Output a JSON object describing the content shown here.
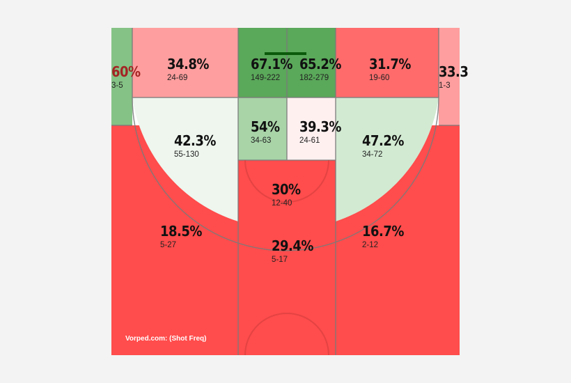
{
  "watermark": "Vorped.com: (Shot Freq)",
  "colors": {
    "red_strong": "#ff4c4c",
    "red_medium": "#ff6b6b",
    "red_light": "#ff9e9e",
    "pink_faint": "#fff0f0",
    "green_strong": "#5aa85a",
    "green_medium": "#85c285",
    "green_soft": "#a8d4a8",
    "green_light": "#d2ead2",
    "green_faint": "#eef6ee"
  },
  "chart_data": {
    "type": "heatmap",
    "title": "",
    "zones": [
      {
        "id": "left-corner-3",
        "pct": "60%",
        "made_attempts": "3-5"
      },
      {
        "id": "left-baseline-2",
        "pct": "34.8%",
        "made_attempts": "24-69"
      },
      {
        "id": "restricted-left",
        "pct": "67.1%",
        "made_attempts": "149-222"
      },
      {
        "id": "restricted-right",
        "pct": "65.2%",
        "made_attempts": "182-279"
      },
      {
        "id": "right-baseline-2",
        "pct": "31.7%",
        "made_attempts": "19-60"
      },
      {
        "id": "right-corner-3",
        "pct": "33.3",
        "made_attempts": "1-3"
      },
      {
        "id": "left-wing-2",
        "pct": "42.3%",
        "made_attempts": "55-130"
      },
      {
        "id": "paint-left",
        "pct": "54%",
        "made_attempts": "34-63"
      },
      {
        "id": "paint-right",
        "pct": "39.3%",
        "made_attempts": "24-61"
      },
      {
        "id": "right-wing-2",
        "pct": "47.2%",
        "made_attempts": "34-72"
      },
      {
        "id": "top-key-2",
        "pct": "30%",
        "made_attempts": "12-40"
      },
      {
        "id": "left-wing-3",
        "pct": "18.5%",
        "made_attempts": "5-27"
      },
      {
        "id": "top-3",
        "pct": "29.4%",
        "made_attempts": "5-17"
      },
      {
        "id": "right-wing-3",
        "pct": "16.7%",
        "made_attempts": "2-12"
      }
    ]
  }
}
